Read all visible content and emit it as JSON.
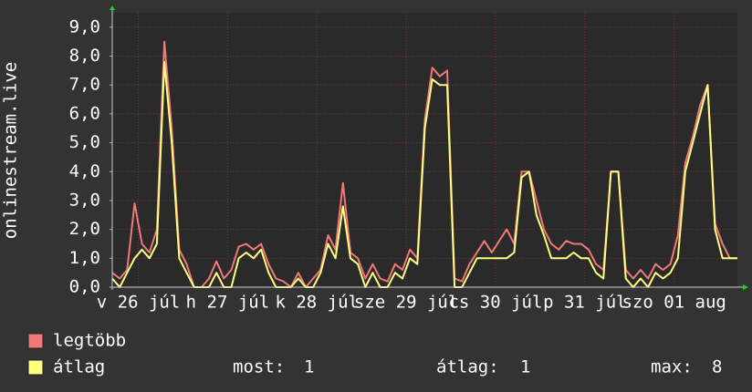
{
  "chart_data": {
    "type": "line",
    "ylabel": "onlinestream.live",
    "x": [
      0,
      2,
      4,
      6,
      8,
      10,
      12,
      14,
      16,
      18,
      20,
      22,
      24,
      26,
      28,
      30,
      32,
      34,
      36,
      38,
      40,
      42,
      44,
      46,
      48,
      50,
      52,
      54,
      56,
      58,
      60,
      62,
      64,
      66,
      68,
      70,
      72,
      74,
      76,
      78,
      80,
      82,
      84,
      86,
      88,
      90,
      92,
      94,
      96,
      98,
      100,
      102,
      104,
      106,
      108,
      110,
      112,
      114,
      116,
      118,
      120,
      122,
      124,
      126,
      128,
      130,
      132,
      134,
      136,
      138,
      140,
      142,
      144,
      146,
      148,
      150,
      152,
      154,
      156,
      158,
      160,
      162,
      164,
      166,
      168
    ],
    "series": [
      {
        "name": "legtöbb",
        "color": "#f07878",
        "values": [
          0.5,
          0.3,
          0.6,
          2.9,
          1.5,
          1.2,
          2.0,
          8.5,
          5.5,
          1.3,
          0.8,
          0,
          0,
          0.3,
          0.9,
          0.3,
          0.6,
          1.4,
          1.5,
          1.3,
          1.5,
          0.8,
          0.3,
          0.2,
          0,
          0.5,
          0,
          0.3,
          0.6,
          1.8,
          1.3,
          3.6,
          1.2,
          1.0,
          0.3,
          0.8,
          0.3,
          0.2,
          0.8,
          0.6,
          1.3,
          1.0,
          5.8,
          7.6,
          7.3,
          7.5,
          0.3,
          0.2,
          0.8,
          1.2,
          1.6,
          1.2,
          1.6,
          2.0,
          1.5,
          4.0,
          4.0,
          3.0,
          2.0,
          1.5,
          1.3,
          1.6,
          1.5,
          1.5,
          1.3,
          0.8,
          0.6,
          4.0,
          4.0,
          0.6,
          0.3,
          0.6,
          0.3,
          0.8,
          0.6,
          0.8,
          1.8,
          4.3,
          5.2,
          6.3,
          7.0,
          2.2,
          1.5,
          1.0,
          1.0
        ]
      },
      {
        "name": "átlag",
        "color": "#ffff80",
        "values": [
          0.3,
          0,
          0.5,
          1.0,
          1.3,
          1.0,
          1.5,
          7.8,
          5.0,
          1.0,
          0.5,
          0,
          0,
          0,
          0.5,
          0,
          0,
          1.0,
          1.2,
          1.0,
          1.3,
          0.5,
          0,
          0,
          0,
          0.3,
          0,
          0,
          0.5,
          1.5,
          1.0,
          2.8,
          1.0,
          0.8,
          0,
          0.5,
          0,
          0,
          0.5,
          0.3,
          1.0,
          0.8,
          5.5,
          7.2,
          7.0,
          7.0,
          0,
          0,
          0.5,
          1.0,
          1.0,
          1.0,
          1.0,
          1.0,
          1.2,
          3.8,
          4.0,
          2.5,
          1.8,
          1.0,
          1.0,
          1.0,
          1.2,
          1.0,
          1.0,
          0.5,
          0.3,
          4.0,
          4.0,
          0.3,
          0,
          0.3,
          0,
          0.5,
          0.3,
          0.5,
          1.0,
          4.0,
          5.0,
          6.0,
          7.0,
          2.0,
          1.0,
          1.0,
          1.0
        ]
      }
    ],
    "xlim": [
      0,
      168
    ],
    "xticks": [
      {
        "value": 7,
        "label": "v 26 júl"
      },
      {
        "value": 31,
        "label": "h 27 júl"
      },
      {
        "value": 55,
        "label": "k 28 júl"
      },
      {
        "value": 79,
        "label": "sze 29 júl"
      },
      {
        "value": 103,
        "label": "cs 30 júl"
      },
      {
        "value": 127,
        "label": "p 31 júl"
      },
      {
        "value": 151,
        "label": "szo 01 aug"
      }
    ],
    "ylim": [
      0,
      9.5
    ],
    "yticks": [
      {
        "value": 0,
        "label": "0,0"
      },
      {
        "value": 1,
        "label": "1,0"
      },
      {
        "value": 2,
        "label": "2,0"
      },
      {
        "value": 3,
        "label": "3,0"
      },
      {
        "value": 4,
        "label": "4,0"
      },
      {
        "value": 5,
        "label": "5,0"
      },
      {
        "value": 6,
        "label": "6,0"
      },
      {
        "value": 7,
        "label": "7,0"
      },
      {
        "value": 8,
        "label": "8,0"
      },
      {
        "value": 9,
        "label": "9,0"
      }
    ],
    "grid": true,
    "stats": [
      {
        "label": "most:",
        "value": 1
      },
      {
        "label": "átlag:",
        "value": 1
      },
      {
        "label": "max:",
        "value": 8
      }
    ]
  }
}
